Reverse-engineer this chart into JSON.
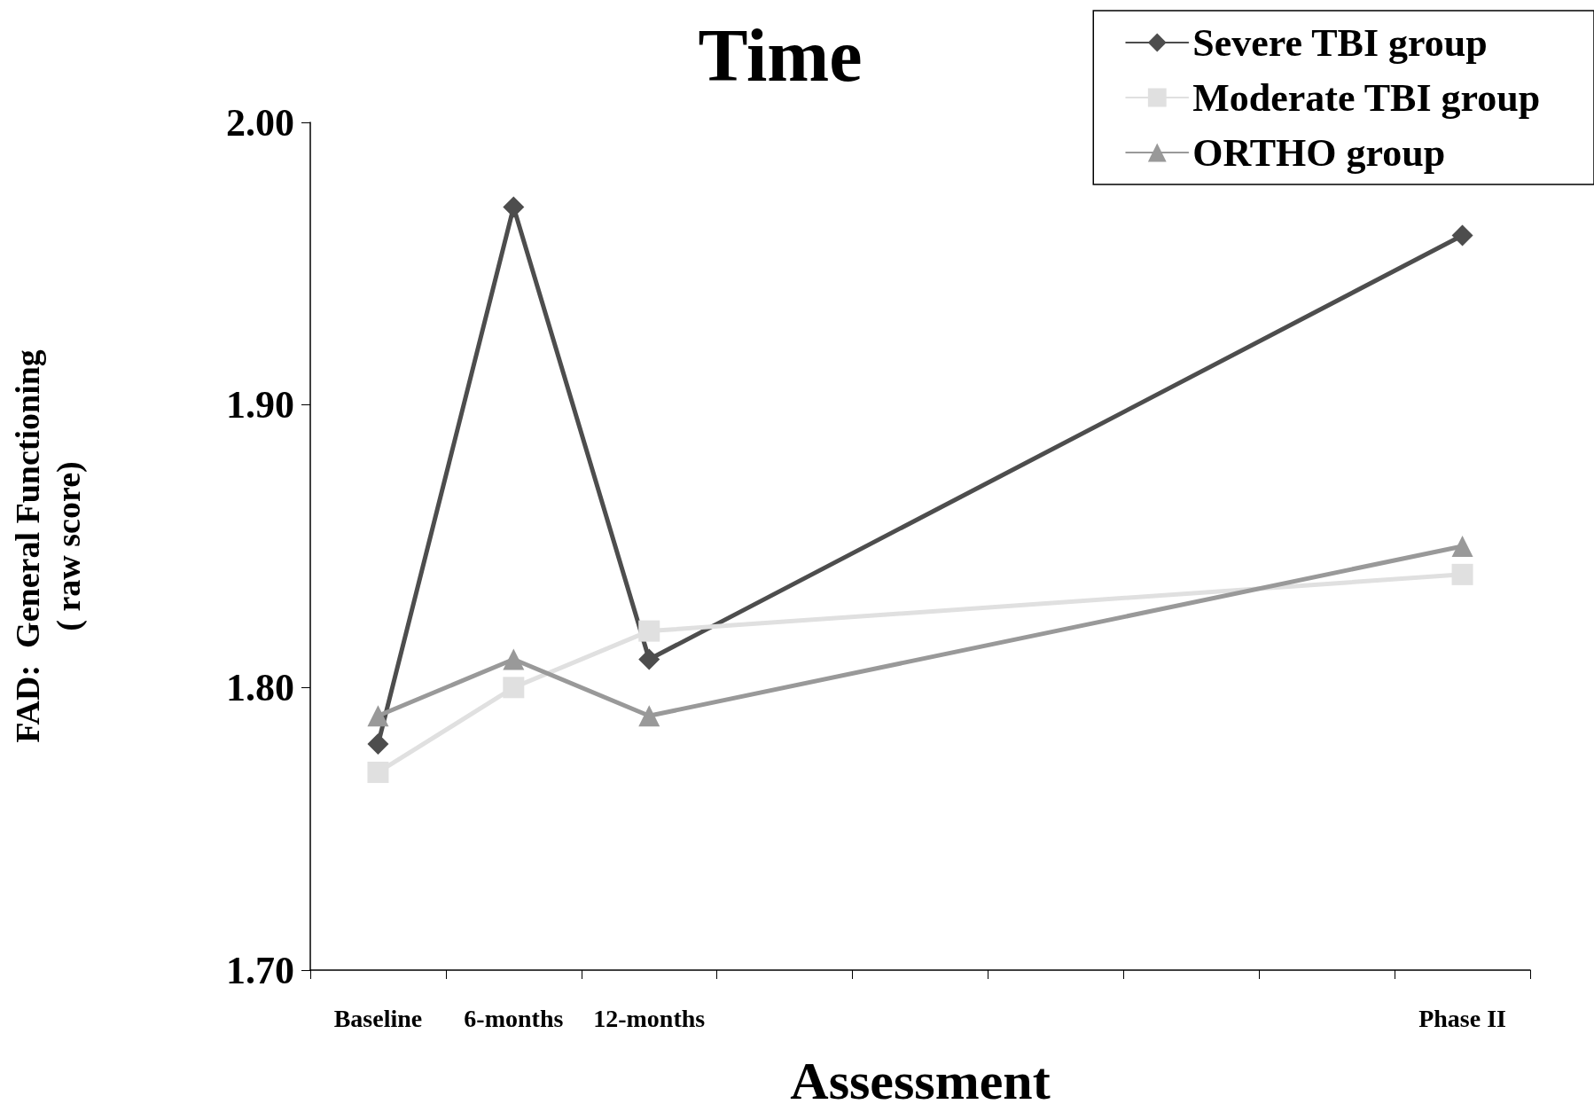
{
  "chart_data": {
    "type": "line",
    "title": "Time",
    "xlabel": "Assessment",
    "ylabel": "FAD:  General Functioning\n( raw score)",
    "categories": [
      "Baseline",
      "6-months",
      "12-months",
      null,
      null,
      null,
      null,
      null,
      "Phase II"
    ],
    "series": [
      {
        "name": "Severe TBI group",
        "color": "#4d4d4d",
        "marker": "diamond",
        "values": [
          1.78,
          1.97,
          1.81,
          null,
          null,
          null,
          null,
          null,
          1.96
        ]
      },
      {
        "name": "Moderate TBI group",
        "color": "#e0e0e0",
        "marker": "square",
        "values": [
          1.77,
          1.8,
          1.82,
          null,
          null,
          null,
          null,
          null,
          1.84
        ]
      },
      {
        "name": "ORTHO group",
        "color": "#999999",
        "marker": "triangle",
        "values": [
          1.79,
          1.81,
          1.79,
          null,
          null,
          null,
          null,
          null,
          1.85
        ]
      }
    ],
    "ylim": [
      1.7,
      2.0
    ],
    "yticks": [
      {
        "value": 1.7,
        "label": "1.70"
      },
      {
        "value": 1.8,
        "label": "1.80"
      },
      {
        "value": 1.9,
        "label": "1.90"
      },
      {
        "value": 2.0,
        "label": "2.00"
      }
    ],
    "grid": false,
    "legend": "top right",
    "line_style": "solid"
  }
}
